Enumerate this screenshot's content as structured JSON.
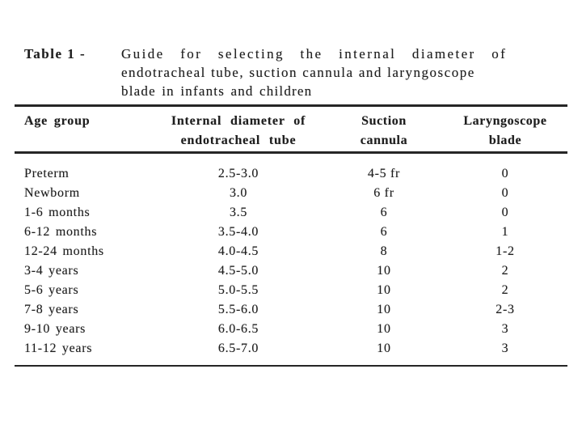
{
  "colors": {
    "background": "#ffffff",
    "ink": "#1e1e1e",
    "rule": "#262626"
  },
  "table": {
    "label": "Table 1 -",
    "title": {
      "line1": "Guide for selecting the internal diameter of",
      "line2": "endotracheal tube, suction cannula and laryngoscope",
      "line3": "blade in infants and children"
    },
    "columns": {
      "age_group": "Age group",
      "diameter_line1": "Internal diameter of",
      "diameter_line2": "endotracheal tube",
      "suction_line1": "Suction",
      "suction_line2": "cannula",
      "blade_line1": "Laryngoscope",
      "blade_line2": "blade"
    },
    "rows": [
      {
        "age": "Preterm",
        "diameter": "2.5-3.0",
        "suction": "4-5 fr",
        "blade": "0"
      },
      {
        "age": "Newborm",
        "diameter": "3.0",
        "suction": "6 fr",
        "blade": "0"
      },
      {
        "age": "1-6 months",
        "diameter": "3.5",
        "suction": "6",
        "blade": "0"
      },
      {
        "age": "6-12 months",
        "diameter": "3.5-4.0",
        "suction": "6",
        "blade": "1"
      },
      {
        "age": "12-24 months",
        "diameter": "4.0-4.5",
        "suction": "8",
        "blade": "1-2"
      },
      {
        "age": "3-4 years",
        "diameter": "4.5-5.0",
        "suction": "10",
        "blade": "2"
      },
      {
        "age": "5-6 years",
        "diameter": "5.0-5.5",
        "suction": "10",
        "blade": "2"
      },
      {
        "age": "7-8 years",
        "diameter": "5.5-6.0",
        "suction": "10",
        "blade": "2-3"
      },
      {
        "age": "9-10 years",
        "diameter": "6.0-6.5",
        "suction": "10",
        "blade": "3"
      },
      {
        "age": "11-12 years",
        "diameter": "6.5-7.0",
        "suction": "10",
        "blade": "3"
      }
    ]
  }
}
